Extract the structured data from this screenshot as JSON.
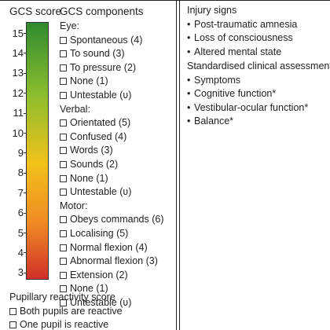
{
  "gcs_column": {
    "header": "GCS score",
    "scale": [
      "15",
      "14",
      "13",
      "12",
      "11",
      "10",
      "9",
      "8",
      "7",
      "6",
      "5",
      "4",
      "3"
    ],
    "gauge_colors": {
      "top": "#2f8a2f",
      "upper": "#8bbd2e",
      "middle": "#f2c21a",
      "lower": "#f08a24",
      "bottom": "#d0302a"
    }
  },
  "components": {
    "header": "GCS components",
    "eye_label": "Eye:",
    "eye": [
      "Spontaneous (4)",
      "To sound (3)",
      "To pressure (2)",
      "None (1)",
      "Untestable (ʋ)"
    ],
    "verbal_label": "Verbal:",
    "verbal": [
      "Orientated (5)",
      "Confused (4)",
      "Words (3)",
      "Sounds (2)",
      "None (1)",
      "Untestable (ʋ)"
    ],
    "motor_label": "Motor:",
    "motor": [
      "Obeys commands (6)",
      "Localising (5)",
      "Normal flexion (4)",
      "Abnormal flexion (3)",
      "Extension (2)",
      "None (1)",
      "Untestable (ʋ)"
    ]
  },
  "pupillary": {
    "header": "Pupillary reactivity score",
    "options": [
      "Both pupils are reactive",
      "One pupil is reactive"
    ]
  },
  "right_panel": {
    "injury_signs_header": "Injury signs",
    "injury_signs": [
      "Post-traumatic amnesia",
      "Loss of consciousness",
      "Altered mental state"
    ],
    "assessment_header": "Standardised clinical assessment",
    "assessment_items": [
      "Symptoms",
      "Cognitive function*",
      "Vestibular-ocular function*",
      "Balance*"
    ]
  },
  "bullet_glyph": "•"
}
